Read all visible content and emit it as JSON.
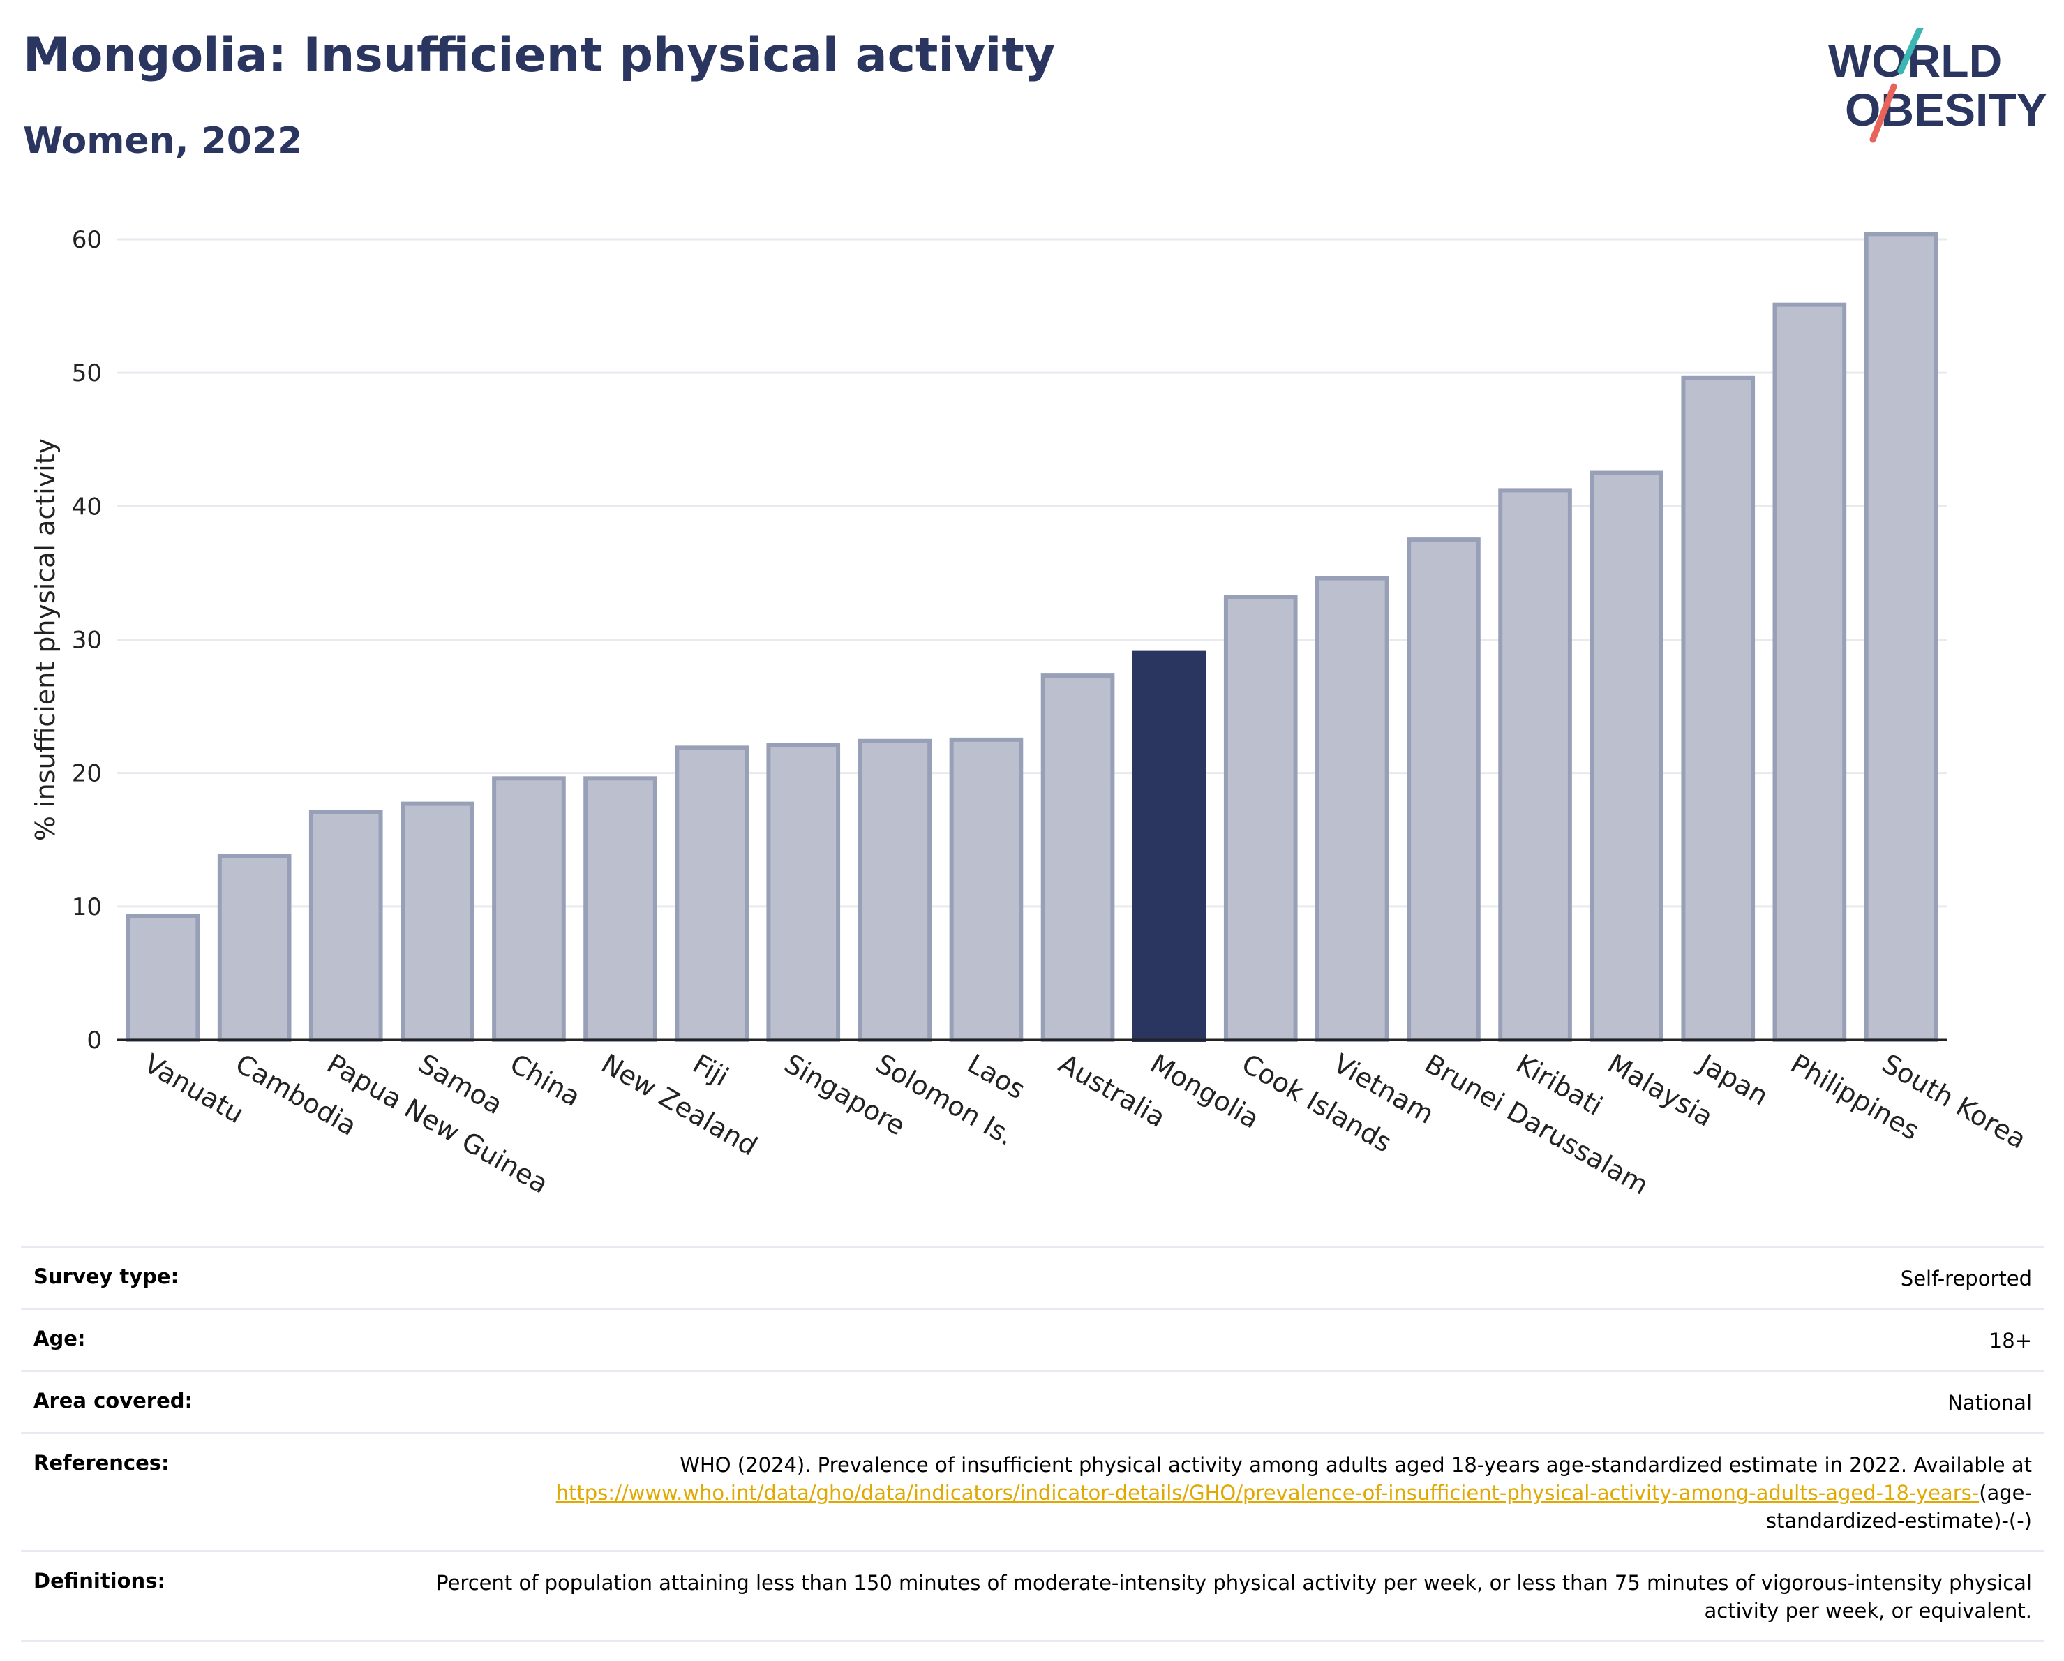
{
  "title": "Mongolia: Insufficient physical activity",
  "subtitle": "Women, 2022",
  "logo": {
    "line1": "WORLD",
    "line2": "OBESITY"
  },
  "colors": {
    "highlight": "#2b3660",
    "bar": "#bcc0ce",
    "bar_border": "#98a0b8",
    "title": "#2b3660",
    "link": "#e0a800",
    "grid": "#e8eaf0"
  },
  "chart_data": {
    "type": "bar",
    "ylabel": "% insufficient physical activity",
    "ylim": [
      0,
      60
    ],
    "yticks": [
      0,
      10,
      20,
      30,
      40,
      50,
      60
    ],
    "grid": true,
    "highlight": "Mongolia",
    "categories": [
      "Vanuatu",
      "Cambodia",
      "Papua New Guinea",
      "Samoa",
      "China",
      "New Zealand",
      "Fiji",
      "Singapore",
      "Solomon Is.",
      "Laos",
      "Australia",
      "Mongolia",
      "Cook Islands",
      "Vietnam",
      "Brunei Darussalam",
      "Kiribati",
      "Malaysia",
      "Japan",
      "Philippines",
      "South Korea"
    ],
    "values": [
      9.3,
      13.8,
      17.1,
      17.7,
      19.6,
      19.6,
      21.9,
      22.1,
      22.4,
      22.5,
      27.3,
      29.0,
      33.2,
      34.6,
      37.5,
      41.2,
      42.5,
      49.6,
      55.1,
      60.4
    ]
  },
  "meta": [
    {
      "label": "Survey type:",
      "value": "Self-reported"
    },
    {
      "label": "Age:",
      "value": "18+"
    },
    {
      "label": "Area covered:",
      "value": "National"
    },
    {
      "label": "References:",
      "value_prefix": "WHO (2024). Prevalence of insufficient physical activity among adults aged 18-years age-standardized estimate in 2022. Available at",
      "link": "https://www.who.int/data/gho/data/indicators/indicator-details/GHO/prevalence-of-insufficient-physical-activity-among-adults-aged-18-years-",
      "value_suffix": "(age-standardized-estimate)-(-)"
    },
    {
      "label": "Definitions:",
      "value": "Percent of population attaining less than 150 minutes of moderate-intensity physical activity per week, or less than 75 minutes of vigorous-intensity physical activity per week, or equivalent."
    }
  ]
}
